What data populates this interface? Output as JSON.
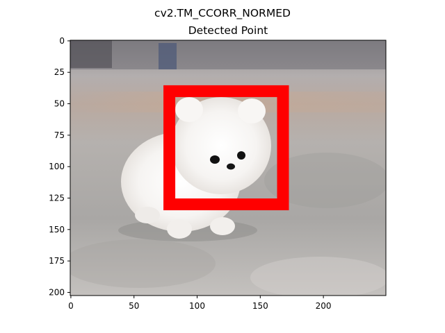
{
  "figure": {
    "suptitle": "cv2.TM_CCORR_NORMED",
    "title": "Detected Point"
  },
  "chart_data": {
    "type": "image",
    "suptitle": "cv2.TM_CCORR_NORMED",
    "title": "Detected Point",
    "xlabel": "",
    "ylabel": "",
    "xlim": [
      -0.5,
      249.5
    ],
    "ylim": [
      202.5,
      -0.5
    ],
    "xticks": [
      0,
      50,
      100,
      150,
      200
    ],
    "yticks": [
      0,
      25,
      50,
      75,
      100,
      125,
      150,
      175,
      200
    ],
    "grid": false,
    "image_content": "white fluffy puppy on grey pavement",
    "detection_box": {
      "x_min": 78,
      "y_min": 40,
      "x_max": 168,
      "y_max": 130,
      "color": "#ff0000"
    }
  }
}
